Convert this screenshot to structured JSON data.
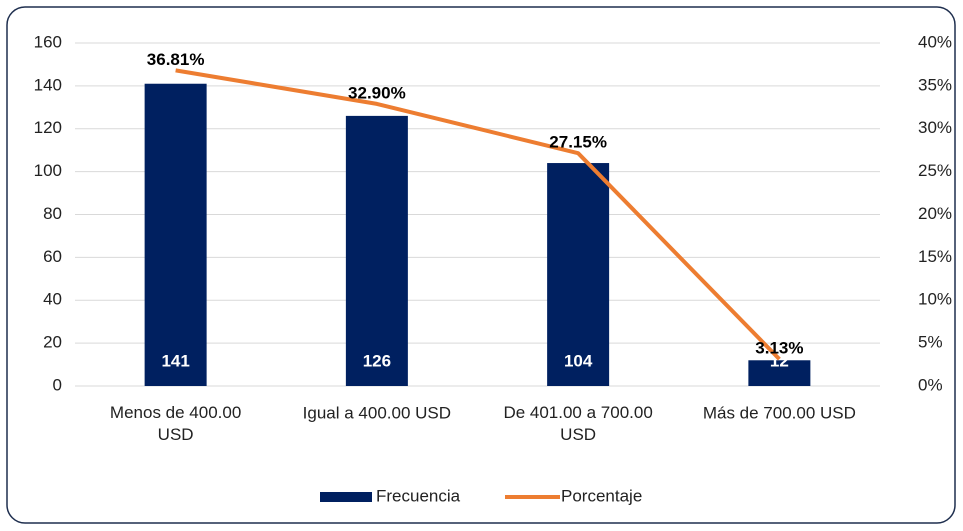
{
  "chart_data": {
    "type": "bar",
    "categories": [
      "Menos de 400.00 USD",
      "Igual a 400.00 USD",
      "De 401.00 a 700.00 USD",
      "Más de 700.00 USD"
    ],
    "series": [
      {
        "name": "Frecuencia",
        "type": "bar",
        "color": "#002060",
        "values": [
          141,
          126,
          104,
          12
        ]
      },
      {
        "name": "Porcentaje",
        "type": "line",
        "axis": "y2",
        "color": "#ed7d31",
        "values": [
          36.81,
          32.9,
          27.15,
          3.13
        ],
        "value_labels": [
          "36.81%",
          "32.90%",
          "27.15%",
          "3.13%"
        ]
      }
    ],
    "ylim": [
      0,
      160
    ],
    "yticks": [
      0,
      20,
      40,
      60,
      80,
      100,
      120,
      140,
      160
    ],
    "y2lim": [
      0,
      40
    ],
    "y2ticks": [
      {
        "value": 0,
        "label": "0%"
      },
      {
        "value": 5,
        "label": "5%"
      },
      {
        "value": 10,
        "label": "10%"
      },
      {
        "value": 15,
        "label": "15%"
      },
      {
        "value": 20,
        "label": "20%"
      },
      {
        "value": 25,
        "label": "25%"
      },
      {
        "value": 30,
        "label": "30%"
      },
      {
        "value": 35,
        "label": "35%"
      },
      {
        "value": 40,
        "label": "40%"
      }
    ],
    "grid": true,
    "legend": "bottom"
  }
}
